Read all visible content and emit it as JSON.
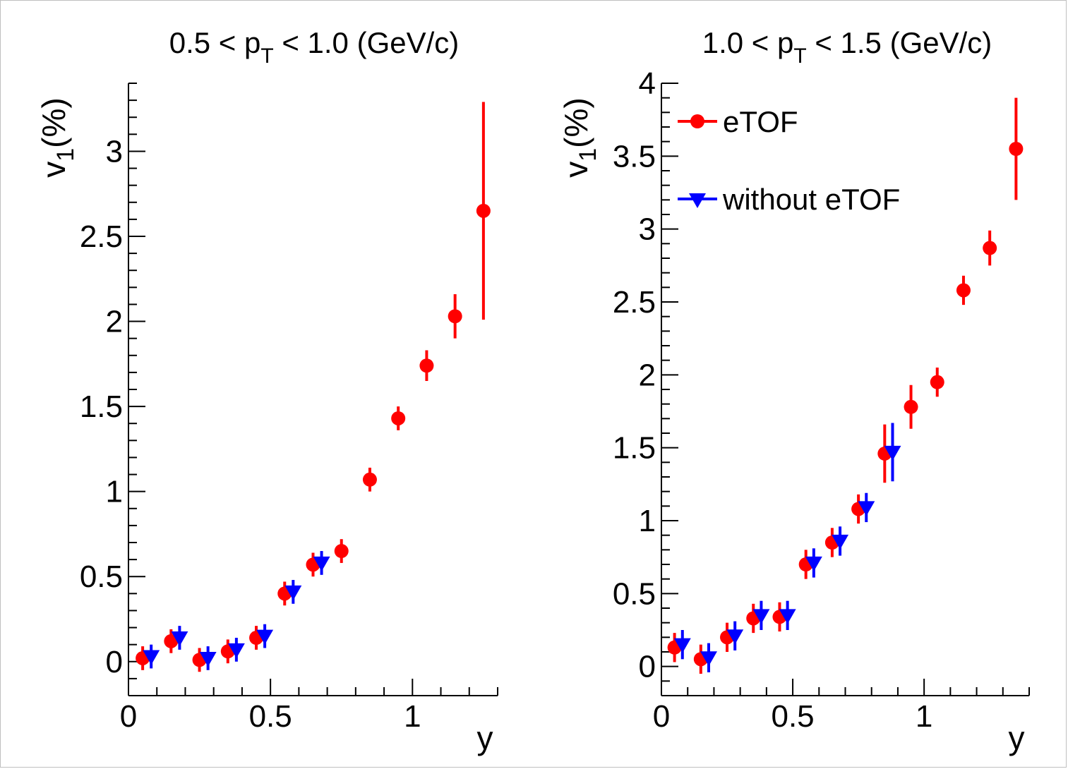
{
  "chart_data": [
    {
      "type": "scatter",
      "title": {
        "main": "0.5 < p",
        "sub": "T",
        "tail": " < 1.0 (GeV/c)"
      },
      "xlabel": "y",
      "ylabel": {
        "main": "v",
        "sub": "1",
        "tail": "(%)"
      },
      "xlim": [
        0,
        1.3
      ],
      "ylim": [
        -0.2,
        3.4
      ],
      "xticks": [
        "0",
        "0.5",
        "1"
      ],
      "xtick_values": [
        0,
        0.5,
        1
      ],
      "yticks": [
        "0",
        "0.5",
        "1",
        "1.5",
        "2",
        "2.5",
        "3"
      ],
      "ytick_values": [
        0,
        0.5,
        1,
        1.5,
        2,
        2.5,
        3
      ],
      "legend": null,
      "series": [
        {
          "name": "eTOF",
          "color": "#ff0000",
          "marker": "circle",
          "points": [
            {
              "x": 0.05,
              "y": 0.02,
              "err": 0.07
            },
            {
              "x": 0.15,
              "y": 0.12,
              "err": 0.07
            },
            {
              "x": 0.25,
              "y": 0.01,
              "err": 0.07
            },
            {
              "x": 0.35,
              "y": 0.06,
              "err": 0.07
            },
            {
              "x": 0.45,
              "y": 0.14,
              "err": 0.07
            },
            {
              "x": 0.55,
              "y": 0.4,
              "err": 0.07
            },
            {
              "x": 0.65,
              "y": 0.57,
              "err": 0.07
            },
            {
              "x": 0.75,
              "y": 0.65,
              "err": 0.07
            },
            {
              "x": 0.85,
              "y": 1.07,
              "err": 0.07
            },
            {
              "x": 0.95,
              "y": 1.43,
              "err": 0.07
            },
            {
              "x": 1.05,
              "y": 1.74,
              "err": 0.09
            },
            {
              "x": 1.15,
              "y": 2.03,
              "err": 0.13
            },
            {
              "x": 1.25,
              "y": 2.65,
              "err": 0.64
            }
          ]
        },
        {
          "name": "without eTOF",
          "color": "#0000ff",
          "marker": "triangle-down",
          "points": [
            {
              "x": 0.08,
              "y": 0.03,
              "err": 0.07
            },
            {
              "x": 0.18,
              "y": 0.14,
              "err": 0.07
            },
            {
              "x": 0.28,
              "y": 0.02,
              "err": 0.07
            },
            {
              "x": 0.38,
              "y": 0.07,
              "err": 0.07
            },
            {
              "x": 0.48,
              "y": 0.15,
              "err": 0.07
            },
            {
              "x": 0.58,
              "y": 0.41,
              "err": 0.07
            },
            {
              "x": 0.68,
              "y": 0.58,
              "err": 0.07
            }
          ]
        }
      ]
    },
    {
      "type": "scatter",
      "title": {
        "main": "1.0 < p",
        "sub": "T",
        "tail": " < 1.5 (GeV/c)"
      },
      "xlabel": "y",
      "ylabel": {
        "main": "v",
        "sub": "1",
        "tail": "(%)"
      },
      "xlim": [
        0,
        1.4
      ],
      "ylim": [
        -0.2,
        4.0
      ],
      "xticks": [
        "0",
        "0.5",
        "1"
      ],
      "xtick_values": [
        0,
        0.5,
        1
      ],
      "yticks": [
        "0",
        "0.5",
        "1",
        "1.5",
        "2",
        "2.5",
        "3",
        "3.5",
        "4"
      ],
      "ytick_values": [
        0,
        0.5,
        1,
        1.5,
        2,
        2.5,
        3,
        3.5,
        4
      ],
      "legend": {
        "placement": "top-left",
        "entries": [
          "eTOF",
          "without eTOF"
        ]
      },
      "series": [
        {
          "name": "eTOF",
          "color": "#ff0000",
          "marker": "circle",
          "points": [
            {
              "x": 0.05,
              "y": 0.13,
              "err": 0.1
            },
            {
              "x": 0.15,
              "y": 0.05,
              "err": 0.1
            },
            {
              "x": 0.25,
              "y": 0.2,
              "err": 0.1
            },
            {
              "x": 0.35,
              "y": 0.33,
              "err": 0.1
            },
            {
              "x": 0.45,
              "y": 0.34,
              "err": 0.1
            },
            {
              "x": 0.55,
              "y": 0.7,
              "err": 0.1
            },
            {
              "x": 0.65,
              "y": 0.85,
              "err": 0.1
            },
            {
              "x": 0.75,
              "y": 1.08,
              "err": 0.1
            },
            {
              "x": 0.85,
              "y": 1.46,
              "err": 0.2
            },
            {
              "x": 0.95,
              "y": 1.78,
              "err": 0.15
            },
            {
              "x": 1.05,
              "y": 1.95,
              "err": 0.1
            },
            {
              "x": 1.15,
              "y": 2.58,
              "err": 0.1
            },
            {
              "x": 1.25,
              "y": 2.87,
              "err": 0.12
            },
            {
              "x": 1.35,
              "y": 3.55,
              "err": 0.35
            }
          ]
        },
        {
          "name": "without eTOF",
          "color": "#0000ff",
          "marker": "triangle-down",
          "points": [
            {
              "x": 0.08,
              "y": 0.15,
              "err": 0.1
            },
            {
              "x": 0.18,
              "y": 0.06,
              "err": 0.1
            },
            {
              "x": 0.28,
              "y": 0.21,
              "err": 0.1
            },
            {
              "x": 0.38,
              "y": 0.35,
              "err": 0.1
            },
            {
              "x": 0.48,
              "y": 0.35,
              "err": 0.1
            },
            {
              "x": 0.58,
              "y": 0.71,
              "err": 0.1
            },
            {
              "x": 0.68,
              "y": 0.86,
              "err": 0.1
            },
            {
              "x": 0.78,
              "y": 1.09,
              "err": 0.1
            },
            {
              "x": 0.88,
              "y": 1.47,
              "err": 0.2
            }
          ]
        }
      ]
    }
  ]
}
